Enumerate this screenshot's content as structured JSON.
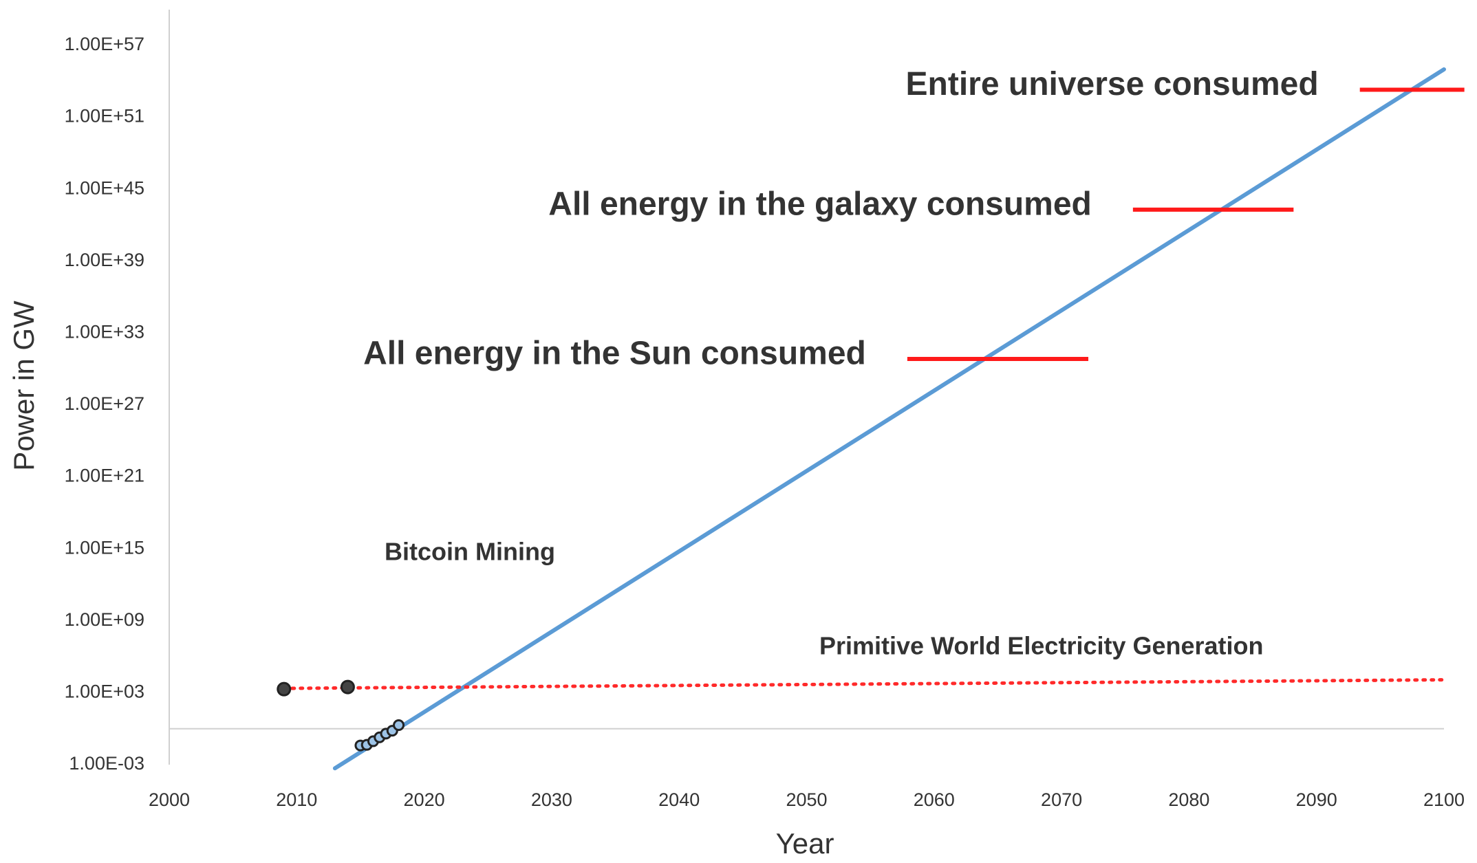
{
  "chart_data": {
    "type": "line",
    "y_label": "Power in GW",
    "x_label": "Year",
    "log_y": true,
    "xlim": [
      2000,
      2100
    ],
    "xticks": [
      2000,
      2010,
      2020,
      2030,
      2040,
      2050,
      2060,
      2070,
      2080,
      2090,
      2100
    ],
    "ylim": [
      0.001,
      1e+57
    ],
    "yticks": [
      {
        "value": 0.001,
        "label": "1.00E-03"
      },
      {
        "value": 1000,
        "label": "1.00E+03"
      },
      {
        "value": 1000000000.0,
        "label": "1.00E+09"
      },
      {
        "value": 1000000000000000.0,
        "label": "1.00E+15"
      },
      {
        "value": 1e+21,
        "label": "1.00E+21"
      },
      {
        "value": 1e+27,
        "label": "1.00E+27"
      },
      {
        "value": 1e+33,
        "label": "1.00E+33"
      },
      {
        "value": 1e+39,
        "label": "1.00E+39"
      },
      {
        "value": 1e+45,
        "label": "1.00E+45"
      },
      {
        "value": 1e+51,
        "label": "1.00E+51"
      },
      {
        "value": 1e+57,
        "label": "1.00E+57"
      }
    ],
    "hline": 1,
    "series": [
      {
        "name": "Bitcoin Mining",
        "color": "#5b9bd5",
        "dash": false,
        "x": [
          2013,
          2100
        ],
        "values": [
          0.0005,
          1e+55
        ],
        "points": {
          "color": "#9dc3e6",
          "x": [
            2015,
            2015.5,
            2016,
            2016.5,
            2017,
            2017.5,
            2018
          ],
          "values": [
            0.04,
            0.045,
            0.09,
            0.19,
            0.39,
            0.68,
            2
          ]
        }
      },
      {
        "name": "Primitive World Electricity Generation",
        "color": "#ff2a2a",
        "dash": true,
        "x": [
          2009,
          2100
        ],
        "values": [
          2300,
          12000
        ],
        "points": {
          "color": "#444444",
          "x": [
            2009,
            2014
          ],
          "values": [
            2000,
            3000
          ]
        }
      }
    ],
    "annotations": [
      {
        "text": "Entire universe consumed",
        "value": 2e+53,
        "x": [
          2093.4,
          2101.6
        ],
        "color": "#ff1a1a"
      },
      {
        "text": "All energy in the galaxy consumed",
        "value": 2e+43,
        "x": [
          2075.6,
          2088.2
        ],
        "color": "#ff1a1a"
      },
      {
        "text": "All energy in the Sun consumed",
        "value": 7e+30,
        "x": [
          2057.9,
          2072.1
        ],
        "color": "#ff1a1a"
      }
    ]
  }
}
